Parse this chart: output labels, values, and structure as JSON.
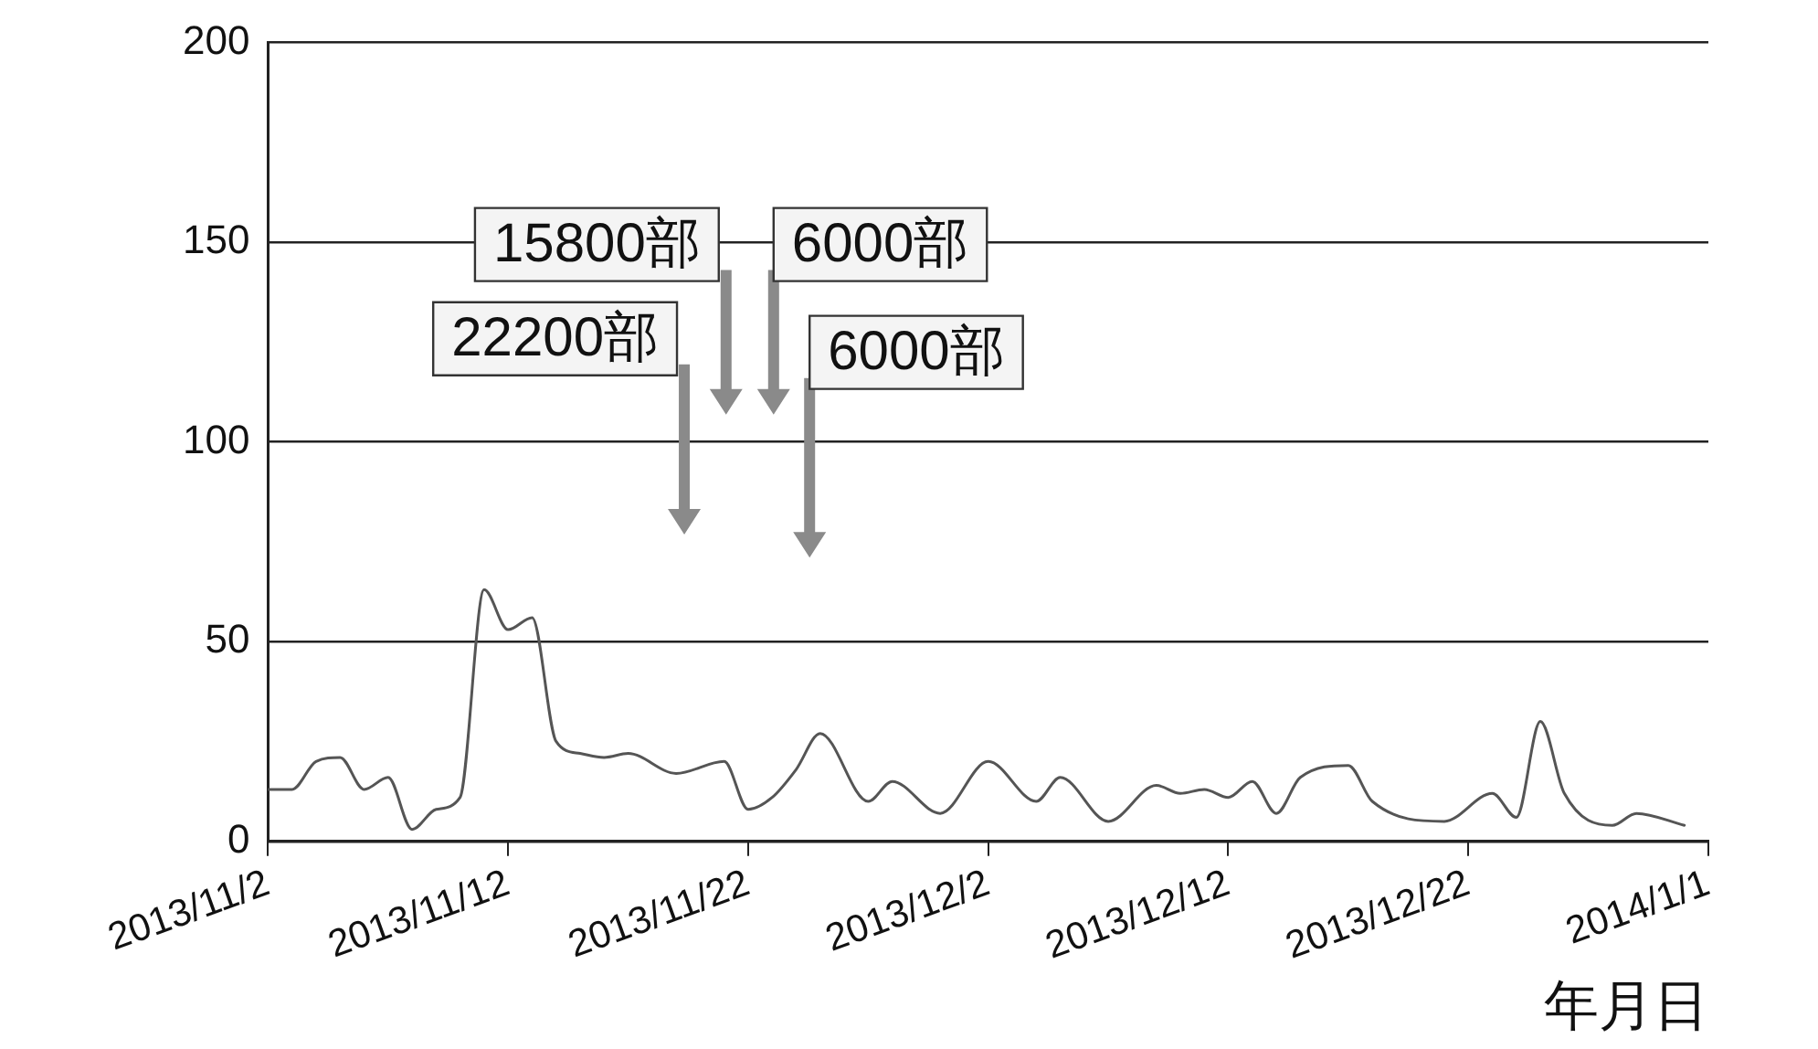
{
  "chart_data": {
    "type": "line",
    "xlabel": "年月日",
    "x": [
      "2013-11-02",
      "2013-11-03",
      "2013-11-04",
      "2013-11-05",
      "2013-11-06",
      "2013-11-07",
      "2013-11-08",
      "2013-11-09",
      "2013-11-10",
      "2013-11-11",
      "2013-11-12",
      "2013-11-13",
      "2013-11-14",
      "2013-11-15",
      "2013-11-16",
      "2013-11-17",
      "2013-11-19",
      "2013-11-21",
      "2013-11-22",
      "2013-11-23",
      "2013-11-24",
      "2013-11-25",
      "2013-11-27",
      "2013-11-28",
      "2013-11-30",
      "2013-12-02",
      "2013-12-04",
      "2013-12-05",
      "2013-12-07",
      "2013-12-09",
      "2013-12-10",
      "2013-12-11",
      "2013-12-12",
      "2013-12-13",
      "2013-12-14",
      "2013-12-15",
      "2013-12-17",
      "2013-12-18",
      "2013-12-21",
      "2013-12-23",
      "2013-12-24",
      "2013-12-25",
      "2013-12-26",
      "2013-12-28",
      "2013-12-29",
      "2013-12-31"
    ],
    "series": [
      {
        "color": "#555555",
        "values": [
          13,
          13,
          20,
          21,
          13,
          16,
          3,
          8,
          11,
          63,
          53,
          56,
          25,
          22,
          21,
          22,
          17,
          20,
          8,
          11,
          18,
          27,
          10,
          15,
          7,
          20,
          10,
          16,
          5,
          14,
          12,
          13,
          11,
          15,
          7,
          16,
          19,
          10,
          5,
          12,
          6,
          30,
          12,
          4,
          7,
          4
        ]
      }
    ],
    "xlim": [
      "2013-11-02",
      "2014-01-01"
    ],
    "xticks": [
      {
        "value": "2013-11-02",
        "label": "2013/11/2"
      },
      {
        "value": "2013-11-12",
        "label": "2013/11/12"
      },
      {
        "value": "2013-11-22",
        "label": "2013/11/22"
      },
      {
        "value": "2013-12-02",
        "label": "2013/12/2"
      },
      {
        "value": "2013-12-12",
        "label": "2013/12/12"
      },
      {
        "value": "2013-12-22",
        "label": "2013/12/22"
      },
      {
        "value": "2014-01-01",
        "label": "2014/1/1"
      }
    ],
    "ylim": [
      0,
      200
    ],
    "yticks": [
      0,
      50,
      100,
      150,
      200
    ],
    "grid": "y",
    "legend": false,
    "marker": "none",
    "line_style": "solid",
    "annotations": [
      "15800部",
      "6000部",
      "22200部",
      "6000部"
    ]
  }
}
